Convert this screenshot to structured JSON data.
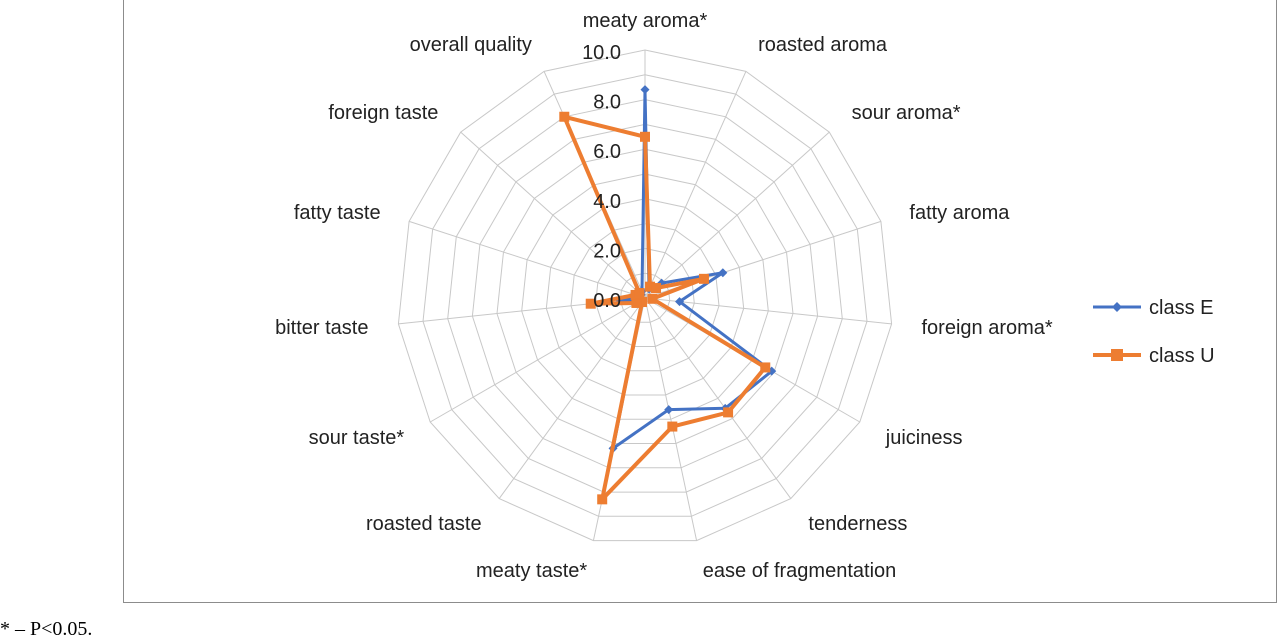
{
  "chart_data": {
    "type": "radar",
    "categories": [
      "meaty aroma*",
      "roasted aroma",
      "sour aroma*",
      "fatty aroma",
      "foreign aroma*",
      "juiciness",
      "tenderness",
      "ease of fragmentation",
      "meaty taste*",
      "roasted taste",
      "sour taste*",
      "bitter taste",
      "fatty taste",
      "foreign taste",
      "overall quality"
    ],
    "series": [
      {
        "name": "class E",
        "color": "#4472c4",
        "marker": "diamond",
        "values": [
          8.4,
          0.4,
          0.9,
          3.3,
          1.4,
          5.9,
          5.5,
          4.6,
          6.2,
          0.2,
          0.2,
          1.0,
          0.3,
          0.2,
          0.3
        ]
      },
      {
        "name": "class U",
        "color": "#ed7d31",
        "marker": "square",
        "values": [
          6.5,
          0.5,
          0.6,
          2.5,
          0.3,
          5.6,
          5.7,
          5.3,
          8.3,
          0.2,
          0.4,
          2.2,
          0.4,
          0.3,
          8.0
        ]
      }
    ],
    "ticks": [
      "0.0",
      "2.0",
      "4.0",
      "6.0",
      "8.0",
      "10.0"
    ],
    "rmax": 10,
    "grid": true,
    "legend_position": "right"
  },
  "footnote": "* – P<0.05."
}
